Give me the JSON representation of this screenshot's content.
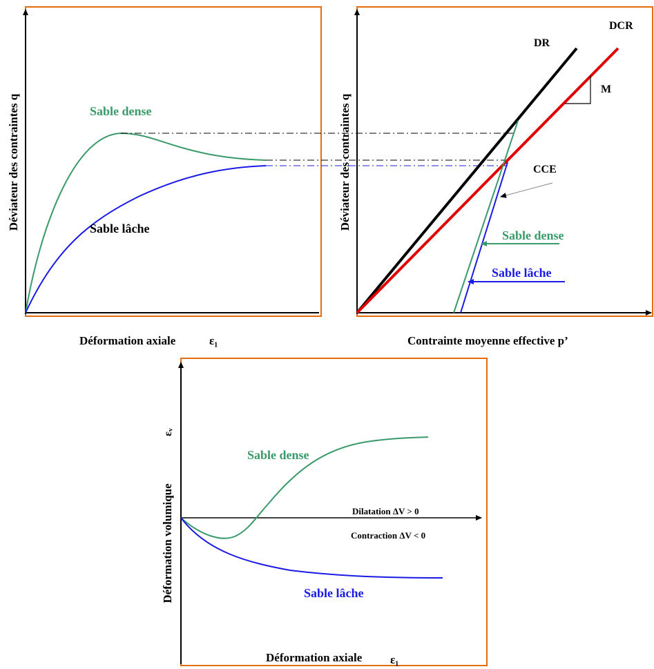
{
  "colors": {
    "frame": "#E46C0A",
    "dense": "#3A9A6A",
    "loose": "#1A1AE6",
    "line_dr": "#000000",
    "line_dcr": "#E00000",
    "axis": "#000000"
  },
  "panel_q_eps": {
    "ylabel": "Déviateur des contraintes  q",
    "xlabel": "Déformation axiale",
    "xsymbol": "ε₁",
    "dense_label": "Sable dense",
    "loose_label": "Sable lâche"
  },
  "panel_q_p": {
    "ylabel": "Déviateur des contraintes  q",
    "xlabel": "Contrainte moyenne effective  p’",
    "dr_label": "DR",
    "dcr_label": "DCR",
    "slope_label": "M",
    "cce_label": "CCE",
    "dense_label": "Sable dense",
    "loose_label": "Sable lâche"
  },
  "panel_ev_eps": {
    "ylabel": "Déformation volumique",
    "ysymbol": "εᵥ",
    "xlabel": "Déformation axiale",
    "xsymbol": "ε₁",
    "dilatation_label": "Dilatation ΔV > 0",
    "contraction_label": "Contraction ΔV < 0",
    "dense_label": "Sable dense",
    "loose_label": "Sable lâche"
  }
}
